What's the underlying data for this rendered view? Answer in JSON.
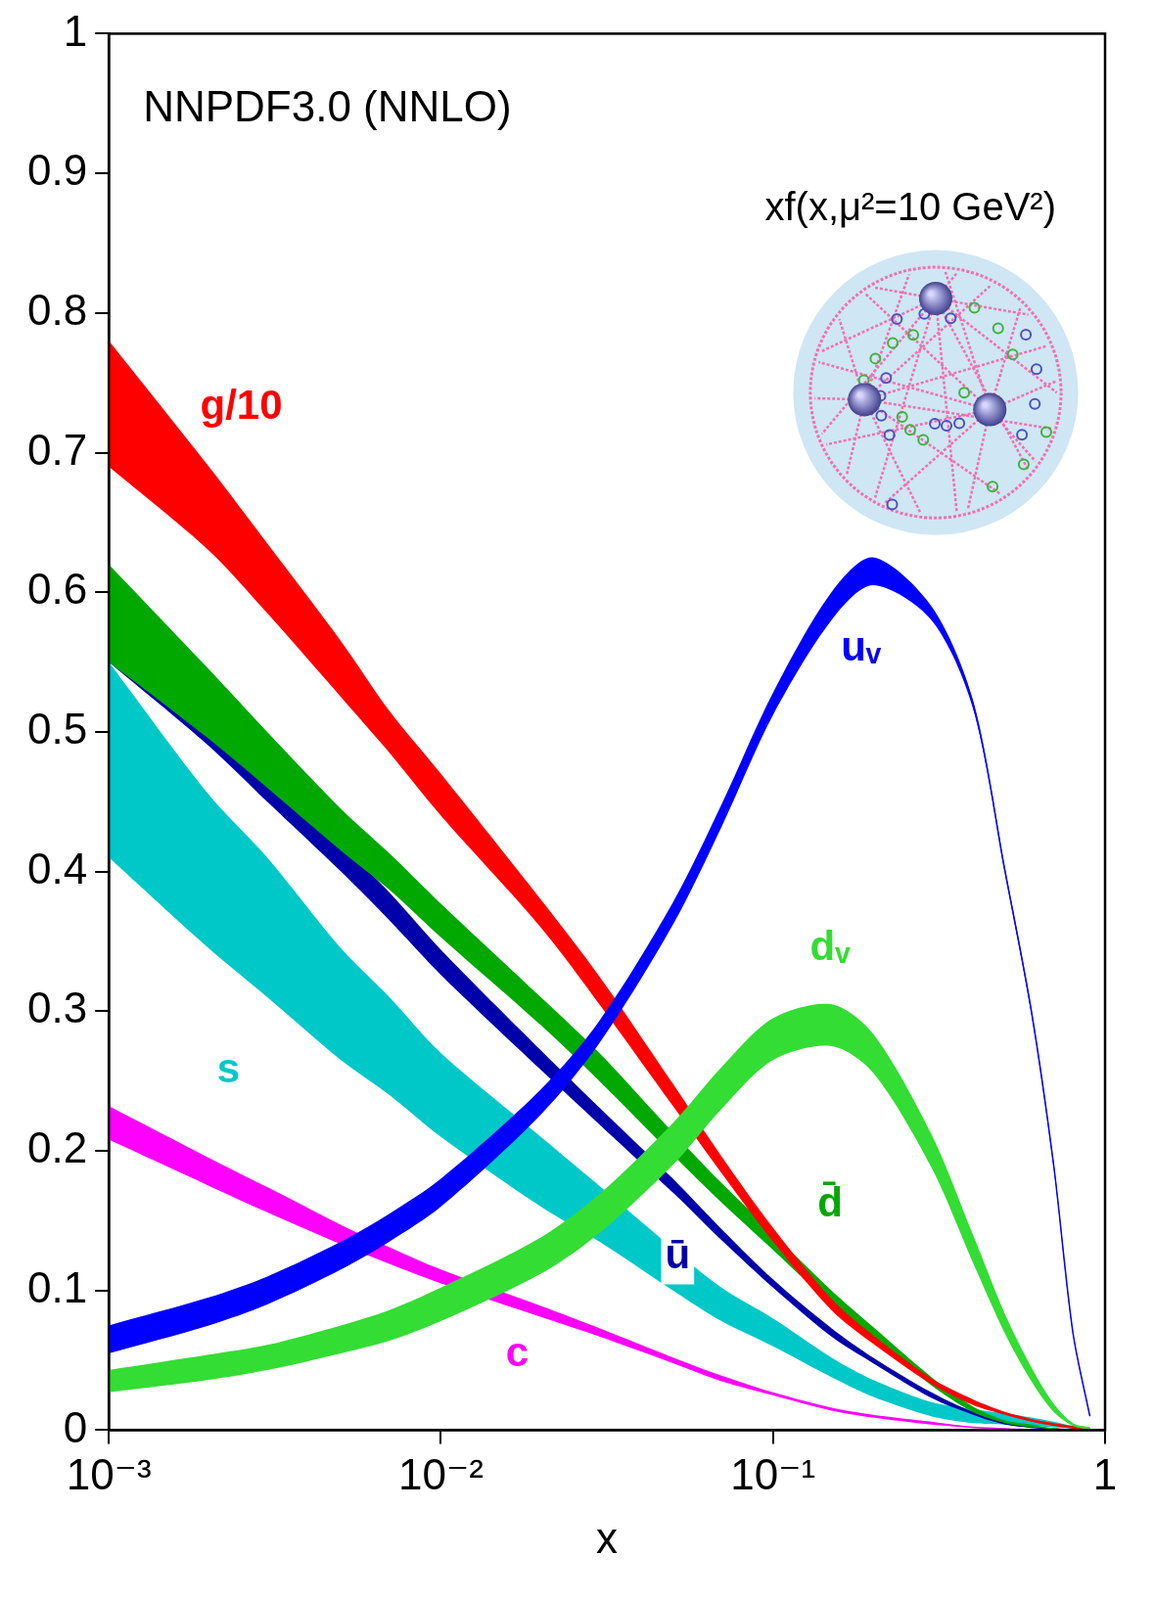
{
  "chart_data": {
    "type": "line",
    "title": "NNPDF3.0 (NNLO)",
    "subtitle": "xf(x,μ²=10 GeV²)",
    "x_label": "x",
    "log": "x",
    "grid": false,
    "xlim": [
      0.001,
      1
    ],
    "ylim": [
      0,
      1
    ],
    "xticks": [
      {
        "value": 0.001,
        "label": "10⁻³"
      },
      {
        "value": 0.01,
        "label": "10⁻²"
      },
      {
        "value": 0.1,
        "label": "10⁻¹"
      },
      1
    ],
    "yticks": [
      0,
      0.1,
      0.2,
      0.3,
      0.4,
      0.5,
      0.6,
      0.7,
      0.8,
      0.9,
      1
    ],
    "x": [
      0.001,
      0.002,
      0.003,
      0.005,
      0.007,
      0.01,
      0.02,
      0.03,
      0.05,
      0.07,
      0.1,
      0.15,
      0.2,
      0.3,
      0.4,
      0.5,
      0.6,
      0.7,
      0.8,
      0.9
    ],
    "series": [
      {
        "name": "uᵥ",
        "color": "#0000ff",
        "values": [
          0.065,
          0.085,
          0.1,
          0.125,
          0.145,
          0.17,
          0.235,
          0.285,
          0.37,
          0.44,
          0.52,
          0.59,
          0.615,
          0.585,
          0.52,
          0.4,
          0.3,
          0.19,
          0.07,
          0.01
        ],
        "lower": [
          0.055,
          0.075,
          0.09,
          0.115,
          0.135,
          0.16,
          0.226,
          0.277,
          0.362,
          0.432,
          0.512,
          0.58,
          0.605,
          0.58,
          0.517,
          0.398,
          0.298,
          0.188,
          0.069,
          0.009
        ],
        "upper": [
          0.075,
          0.095,
          0.11,
          0.135,
          0.155,
          0.18,
          0.244,
          0.293,
          0.378,
          0.448,
          0.528,
          0.6,
          0.625,
          0.59,
          0.523,
          0.402,
          0.302,
          0.192,
          0.071,
          0.011
        ]
      },
      {
        "name": "dᵥ",
        "color": "#33dd33",
        "values": [
          0.035,
          0.045,
          0.052,
          0.065,
          0.075,
          0.09,
          0.125,
          0.155,
          0.205,
          0.245,
          0.28,
          0.29,
          0.27,
          0.2,
          0.13,
          0.076,
          0.04,
          0.016,
          0.004,
          0.001
        ],
        "lower": [
          0.027,
          0.036,
          0.043,
          0.055,
          0.064,
          0.078,
          0.112,
          0.141,
          0.19,
          0.23,
          0.265,
          0.275,
          0.256,
          0.188,
          0.12,
          0.069,
          0.035,
          0.013,
          0.003,
          0
        ],
        "upper": [
          0.043,
          0.054,
          0.061,
          0.075,
          0.086,
          0.102,
          0.138,
          0.169,
          0.22,
          0.26,
          0.295,
          0.305,
          0.284,
          0.212,
          0.14,
          0.083,
          0.045,
          0.019,
          0.005,
          0.002
        ]
      },
      {
        "name": "c",
        "color": "#ff00ff",
        "values": [
          0.22,
          0.185,
          0.165,
          0.14,
          0.125,
          0.11,
          0.085,
          0.07,
          0.05,
          0.037,
          0.026,
          0.015,
          0.01,
          0.005,
          0.002,
          0.001,
          0,
          0,
          0,
          0
        ],
        "lower": [
          0.208,
          0.175,
          0.156,
          0.133,
          0.119,
          0.105,
          0.081,
          0.067,
          0.048,
          0.035,
          0.025,
          0.014,
          0.009,
          0.004,
          0.002,
          0.001,
          0,
          0,
          0,
          0
        ],
        "upper": [
          0.232,
          0.195,
          0.174,
          0.147,
          0.131,
          0.115,
          0.089,
          0.073,
          0.052,
          0.039,
          0.027,
          0.016,
          0.011,
          0.006,
          0.002,
          0.001,
          0,
          0,
          0,
          0
        ]
      },
      {
        "name": "g/10",
        "color": "#ff0000",
        "values": [
          0.735,
          0.66,
          0.61,
          0.545,
          0.5,
          0.455,
          0.37,
          0.315,
          0.24,
          0.19,
          0.14,
          0.09,
          0.065,
          0.035,
          0.02,
          0.012,
          0.007,
          0.004,
          0.002,
          0.001
        ],
        "lower": [
          0.69,
          0.63,
          0.585,
          0.525,
          0.485,
          0.44,
          0.36,
          0.305,
          0.232,
          0.184,
          0.135,
          0.086,
          0.062,
          0.033,
          0.018,
          0.011,
          0.006,
          0.003,
          0.001,
          0
        ],
        "upper": [
          0.78,
          0.69,
          0.635,
          0.565,
          0.515,
          0.47,
          0.38,
          0.325,
          0.248,
          0.196,
          0.145,
          0.094,
          0.068,
          0.037,
          0.022,
          0.013,
          0.008,
          0.005,
          0.003,
          0.002
        ]
      },
      {
        "name": "d̄",
        "color": "#00a800",
        "values": [
          0.585,
          0.52,
          0.48,
          0.43,
          0.4,
          0.365,
          0.3,
          0.26,
          0.205,
          0.17,
          0.135,
          0.095,
          0.07,
          0.035,
          0.015,
          0.006,
          0.003,
          0.001,
          0,
          0
        ],
        "lower": [
          0.55,
          0.495,
          0.46,
          0.415,
          0.387,
          0.353,
          0.29,
          0.25,
          0.197,
          0.163,
          0.129,
          0.09,
          0.066,
          0.032,
          0.013,
          0.005,
          0.002,
          0.001,
          0,
          0
        ],
        "upper": [
          0.62,
          0.545,
          0.5,
          0.445,
          0.413,
          0.377,
          0.31,
          0.27,
          0.213,
          0.177,
          0.141,
          0.1,
          0.074,
          0.038,
          0.017,
          0.007,
          0.004,
          0.001,
          0,
          0
        ]
      },
      {
        "name": "ū",
        "color": "#0000aa",
        "values": [
          0.58,
          0.51,
          0.465,
          0.41,
          0.375,
          0.335,
          0.265,
          0.225,
          0.175,
          0.14,
          0.105,
          0.07,
          0.05,
          0.025,
          0.012,
          0.005,
          0.002,
          0.001,
          0,
          0
        ],
        "lower": [
          0.55,
          0.49,
          0.45,
          0.4,
          0.365,
          0.326,
          0.258,
          0.219,
          0.17,
          0.136,
          0.102,
          0.067,
          0.048,
          0.023,
          0.011,
          0.004,
          0.002,
          0.001,
          0,
          0
        ],
        "upper": [
          0.61,
          0.53,
          0.48,
          0.42,
          0.385,
          0.344,
          0.272,
          0.231,
          0.18,
          0.144,
          0.108,
          0.073,
          0.052,
          0.027,
          0.013,
          0.006,
          0.002,
          0.001,
          0,
          0
        ]
      },
      {
        "name": "s",
        "color": "#00c8c8",
        "values": [
          0.48,
          0.4,
          0.36,
          0.305,
          0.275,
          0.24,
          0.185,
          0.155,
          0.115,
          0.09,
          0.07,
          0.045,
          0.03,
          0.015,
          0.01,
          0.008,
          0.006,
          0.004,
          0.002,
          0.001
        ],
        "lower": [
          0.41,
          0.345,
          0.31,
          0.265,
          0.24,
          0.21,
          0.16,
          0.135,
          0.1,
          0.078,
          0.06,
          0.038,
          0.024,
          0.01,
          0.005,
          0.004,
          0.003,
          0.002,
          0.001,
          0
        ],
        "upper": [
          0.55,
          0.455,
          0.41,
          0.345,
          0.31,
          0.27,
          0.21,
          0.175,
          0.13,
          0.102,
          0.08,
          0.052,
          0.036,
          0.02,
          0.015,
          0.012,
          0.009,
          0.006,
          0.003,
          0.002
        ]
      }
    ]
  }
}
